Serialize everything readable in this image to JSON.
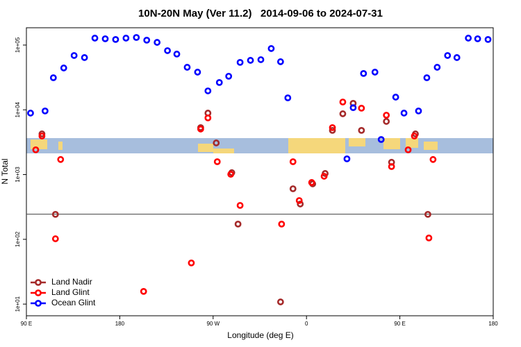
{
  "chart_data": {
    "type": "scatter",
    "title": "10N-20N May (Ver 11.2)   2014-09-06 to 2024-07-31",
    "xlabel": "Longitude (deg E)",
    "ylabel": "N Total",
    "xlim": [
      90,
      540
    ],
    "xticks": [
      {
        "value": 90,
        "label": "90 E"
      },
      {
        "value": 180,
        "label": "180"
      },
      {
        "value": 270,
        "label": "90 W"
      },
      {
        "value": 360,
        "label": "0"
      },
      {
        "value": 450,
        "label": "90 E"
      },
      {
        "value": 540,
        "label": "180"
      }
    ],
    "ylim": [
      6.6,
      185000
    ],
    "yscale": "log",
    "yticks": [
      {
        "value": 10,
        "label": "1e+01"
      },
      {
        "value": 100,
        "label": "1e+02"
      },
      {
        "value": 1000,
        "label": "1e+03"
      },
      {
        "value": 10000,
        "label": "1e+04"
      },
      {
        "value": 100000,
        "label": "1e+05"
      }
    ],
    "hline": 245,
    "legend": "lower left",
    "series": [
      {
        "name": "Land Nadir",
        "color": "#a52a2a",
        "x": [
          105,
          118,
          258,
          265,
          273,
          288,
          294,
          335,
          347,
          354,
          366,
          378,
          385,
          395,
          405,
          413,
          437,
          442,
          465,
          477
        ],
        "values": [
          4250,
          243,
          5310,
          8900,
          3080,
          1070,
          172,
          10.8,
          604,
          351,
          718,
          1040,
          4810,
          8690,
          12600,
          4810,
          6620,
          1550,
          4250,
          243
        ]
      },
      {
        "name": "Land Glint",
        "color": "#ff0000",
        "x": [
          99,
          105,
          123,
          118,
          203,
          249,
          258,
          265,
          274,
          287,
          296,
          336,
          347,
          353,
          365,
          377,
          385,
          395,
          413,
          437,
          442,
          458,
          464,
          482,
          478
        ],
        "values": [
          2410,
          3940,
          1710,
          102,
          15.7,
          43.2,
          5050,
          7500,
          1580,
          1010,
          334,
          172,
          1580,
          397,
          755,
          942,
          5310,
          13200,
          10600,
          8260,
          1330,
          2410,
          3940,
          1710,
          105
        ]
      },
      {
        "name": "Ocean Glint",
        "color": "#0000ff",
        "x": [
          94,
          108,
          116,
          126,
          136,
          146,
          156,
          166,
          176,
          186,
          196,
          206,
          216,
          226,
          235,
          245,
          255,
          265,
          276,
          285,
          296,
          306,
          316,
          326,
          335,
          342,
          399,
          405,
          415,
          426,
          432,
          446,
          454,
          468,
          476,
          486,
          496,
          505,
          516,
          525,
          535
        ],
        "values": [
          8900,
          9600,
          31300,
          44300,
          69000,
          64100,
          128000,
          125000,
          122000,
          128000,
          131000,
          119000,
          110000,
          82000,
          72600,
          45400,
          38200,
          19600,
          26400,
          33000,
          54000,
          58100,
          59500,
          88400,
          55300,
          15300,
          1750,
          10800,
          36400,
          38200,
          3480,
          15700,
          8900,
          9600,
          31300,
          45400,
          69000,
          64100,
          128000,
          125000,
          122000
        ]
      }
    ]
  }
}
